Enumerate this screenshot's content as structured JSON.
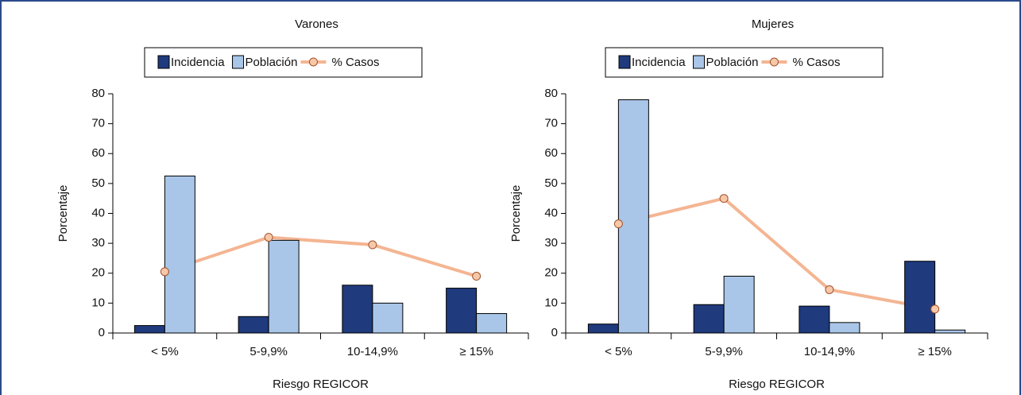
{
  "chart_data": [
    {
      "type": "combo",
      "title": "Varones",
      "x_label": "Riesgo REGICOR",
      "y_label": "Porcentaje",
      "categories": [
        "< 5%",
        "5-9,9%",
        "10-14,9%",
        "≥ 15%"
      ],
      "series": [
        {
          "name": "Incidencia",
          "type": "bar",
          "color": "#1f3a7d",
          "values": [
            2.5,
            5.5,
            16,
            15
          ]
        },
        {
          "name": "Población",
          "type": "bar",
          "color": "#a9c6e8",
          "values": [
            52.5,
            31,
            10,
            6.5
          ]
        },
        {
          "name": "% Casos",
          "type": "line",
          "color": "#f4b592",
          "values": [
            20.5,
            32,
            29.5,
            19
          ]
        }
      ],
      "ylim": [
        0,
        80
      ],
      "yticks": [
        0,
        10,
        20,
        30,
        40,
        50,
        60,
        70,
        80
      ]
    },
    {
      "type": "combo",
      "title": "Mujeres",
      "x_label": "Riesgo REGICOR",
      "y_label": "Porcentaje",
      "categories": [
        "< 5%",
        "5-9,9%",
        "10-14,9%",
        "≥ 15%"
      ],
      "series": [
        {
          "name": "Incidencia",
          "type": "bar",
          "color": "#1f3a7d",
          "values": [
            3,
            9.5,
            9,
            24
          ]
        },
        {
          "name": "Población",
          "type": "bar",
          "color": "#a9c6e8",
          "values": [
            78,
            19,
            3.5,
            1
          ]
        },
        {
          "name": "% Casos",
          "type": "line",
          "color": "#f4b592",
          "values": [
            36.5,
            45,
            14.5,
            8
          ]
        }
      ],
      "ylim": [
        0,
        80
      ],
      "yticks": [
        0,
        10,
        20,
        30,
        40,
        50,
        60,
        70,
        80
      ]
    }
  ]
}
